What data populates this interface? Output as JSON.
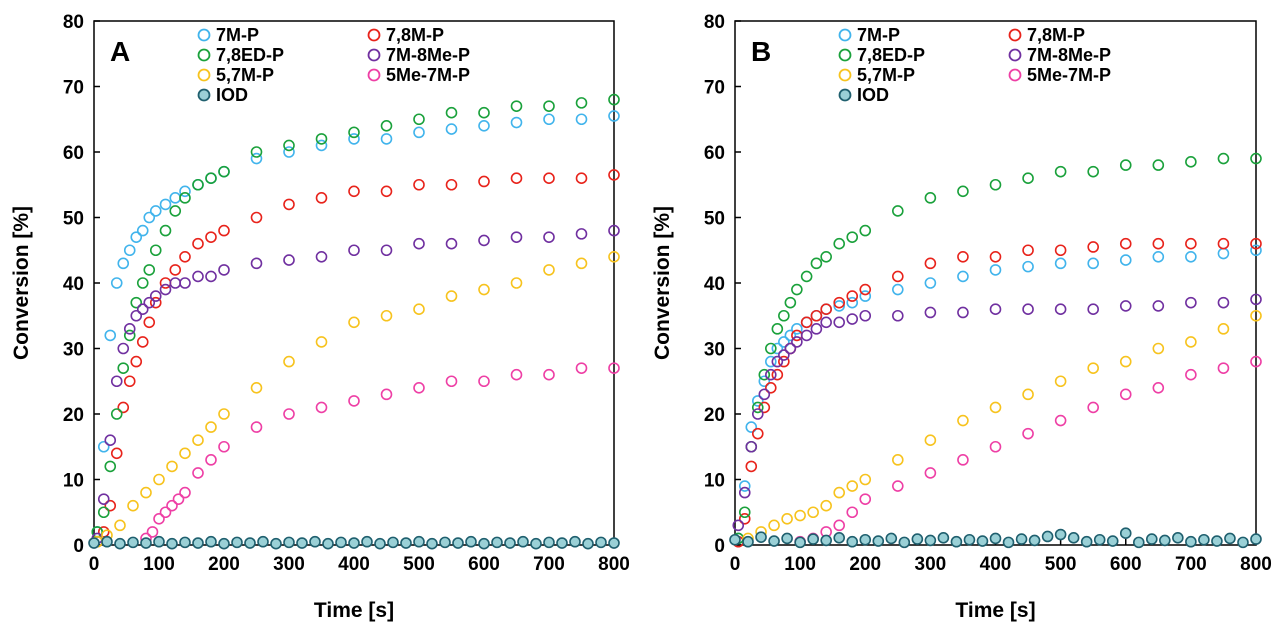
{
  "chart_data": [
    {
      "type": "scatter",
      "panel_label": "A",
      "xlabel": "Time [s]",
      "ylabel": "Conversion [%]",
      "xlim": [
        0,
        800
      ],
      "ylim": [
        0,
        80
      ],
      "xticks": [
        0,
        100,
        200,
        300,
        400,
        500,
        600,
        700,
        800
      ],
      "yticks": [
        0,
        10,
        20,
        30,
        40,
        50,
        60,
        70,
        80
      ],
      "grid": false,
      "legend_position": "top",
      "series": [
        {
          "name": "7M-P",
          "color": "#41b4ec",
          "fill": "none",
          "x": [
            5,
            15,
            25,
            35,
            45,
            55,
            65,
            75,
            85,
            95,
            110,
            125,
            140,
            160,
            180,
            200,
            250,
            300,
            350,
            400,
            450,
            500,
            550,
            600,
            650,
            700,
            750,
            800
          ],
          "y": [
            2,
            15,
            32,
            40,
            43,
            45,
            47,
            48,
            50,
            51,
            52,
            53,
            54,
            55,
            56,
            57,
            59,
            60,
            61,
            62,
            62,
            63,
            63.5,
            64,
            64.5,
            65,
            65,
            65.5
          ]
        },
        {
          "name": "7,8M-P",
          "color": "#e8231b",
          "fill": "none",
          "x": [
            5,
            15,
            25,
            35,
            45,
            55,
            65,
            75,
            85,
            95,
            110,
            125,
            140,
            160,
            180,
            200,
            250,
            300,
            350,
            400,
            450,
            500,
            550,
            600,
            650,
            700,
            750,
            800
          ],
          "y": [
            0.5,
            2,
            6,
            14,
            21,
            25,
            28,
            31,
            34,
            37,
            40,
            42,
            44,
            46,
            47,
            48,
            50,
            52,
            53,
            54,
            54,
            55,
            55,
            55.5,
            56,
            56,
            56,
            56.5
          ]
        },
        {
          "name": "7,8ED-P",
          "color": "#1aa13b",
          "fill": "none",
          "x": [
            5,
            15,
            25,
            35,
            45,
            55,
            65,
            75,
            85,
            95,
            110,
            125,
            140,
            160,
            180,
            200,
            250,
            300,
            350,
            400,
            450,
            500,
            550,
            600,
            650,
            700,
            750,
            800
          ],
          "y": [
            2,
            5,
            12,
            20,
            27,
            32,
            37,
            40,
            42,
            45,
            48,
            51,
            53,
            55,
            56,
            57,
            60,
            61,
            62,
            63,
            64,
            65,
            66,
            66,
            67,
            67,
            67.5,
            68
          ]
        },
        {
          "name": "7M-8Me-P",
          "color": "#7030a0",
          "fill": "none",
          "x": [
            5,
            15,
            25,
            35,
            45,
            55,
            65,
            75,
            85,
            95,
            110,
            125,
            140,
            160,
            180,
            200,
            250,
            300,
            350,
            400,
            450,
            500,
            550,
            600,
            650,
            700,
            750,
            800
          ],
          "y": [
            1,
            7,
            16,
            25,
            30,
            33,
            35,
            36,
            37,
            38,
            39,
            40,
            40,
            41,
            41,
            42,
            43,
            43.5,
            44,
            45,
            45,
            46,
            46,
            46.5,
            47,
            47,
            47.5,
            48
          ]
        },
        {
          "name": "5,7M-P",
          "color": "#f7c31e",
          "fill": "none",
          "x": [
            5,
            20,
            40,
            60,
            80,
            100,
            120,
            140,
            160,
            180,
            200,
            250,
            300,
            350,
            400,
            450,
            500,
            550,
            600,
            650,
            700,
            750,
            800
          ],
          "y": [
            0.5,
            1.5,
            3,
            6,
            8,
            10,
            12,
            14,
            16,
            18,
            20,
            24,
            28,
            31,
            34,
            35,
            36,
            38,
            39,
            40,
            42,
            43,
            44
          ]
        },
        {
          "name": "5Me-7M-P",
          "color": "#ee3fa5",
          "fill": "none",
          "x": [
            80,
            90,
            100,
            110,
            120,
            130,
            140,
            160,
            180,
            200,
            250,
            300,
            350,
            400,
            450,
            500,
            550,
            600,
            650,
            700,
            750,
            800
          ],
          "y": [
            1,
            2,
            4,
            5,
            6,
            7,
            8,
            11,
            13,
            15,
            18,
            20,
            21,
            22,
            23,
            24,
            25,
            25,
            26,
            26,
            27,
            27
          ]
        },
        {
          "name": "IOD",
          "color": "#1f5f6e",
          "fill": "#9ad0d6",
          "x": [
            0,
            20,
            40,
            60,
            80,
            100,
            120,
            140,
            160,
            180,
            200,
            220,
            240,
            260,
            280,
            300,
            320,
            340,
            360,
            380,
            400,
            420,
            440,
            460,
            480,
            500,
            520,
            540,
            560,
            580,
            600,
            620,
            640,
            660,
            680,
            700,
            720,
            740,
            760,
            780,
            800
          ],
          "y": [
            0.3,
            0.5,
            0.2,
            0.4,
            0.3,
            0.5,
            0.2,
            0.4,
            0.3,
            0.5,
            0.2,
            0.4,
            0.3,
            0.5,
            0.2,
            0.4,
            0.3,
            0.5,
            0.2,
            0.4,
            0.3,
            0.5,
            0.2,
            0.4,
            0.3,
            0.5,
            0.2,
            0.4,
            0.3,
            0.5,
            0.2,
            0.4,
            0.3,
            0.5,
            0.2,
            0.4,
            0.3,
            0.5,
            0.2,
            0.4,
            0.3
          ]
        }
      ]
    },
    {
      "type": "scatter",
      "panel_label": "B",
      "xlabel": "Time [s]",
      "ylabel": "Conversion [%]",
      "xlim": [
        0,
        800
      ],
      "ylim": [
        0,
        80
      ],
      "xticks": [
        0,
        100,
        200,
        300,
        400,
        500,
        600,
        700,
        800
      ],
      "yticks": [
        0,
        10,
        20,
        30,
        40,
        50,
        60,
        70,
        80
      ],
      "grid": false,
      "legend_position": "top",
      "series": [
        {
          "name": "7M-P",
          "color": "#41b4ec",
          "fill": "none",
          "x": [
            5,
            15,
            25,
            35,
            45,
            55,
            65,
            75,
            85,
            95,
            110,
            125,
            140,
            160,
            180,
            200,
            250,
            300,
            350,
            400,
            450,
            500,
            550,
            600,
            650,
            700,
            750,
            800
          ],
          "y": [
            1,
            9,
            18,
            22,
            25,
            28,
            30,
            31,
            32,
            33,
            34,
            35,
            36,
            36.5,
            37,
            38,
            39,
            40,
            41,
            42,
            42.5,
            43,
            43,
            43.5,
            44,
            44,
            44.5,
            45
          ]
        },
        {
          "name": "7,8M-P",
          "color": "#e8231b",
          "fill": "none",
          "x": [
            5,
            15,
            25,
            35,
            45,
            55,
            65,
            75,
            85,
            95,
            110,
            125,
            140,
            160,
            180,
            200,
            250,
            300,
            350,
            400,
            450,
            500,
            550,
            600,
            650,
            700,
            750,
            800
          ],
          "y": [
            0.5,
            4,
            12,
            17,
            21,
            24,
            26,
            28,
            30,
            32,
            34,
            35,
            36,
            37,
            38,
            39,
            41,
            43,
            44,
            44,
            45,
            45,
            45.5,
            46,
            46,
            46,
            46,
            46
          ]
        },
        {
          "name": "7,8ED-P",
          "color": "#1aa13b",
          "fill": "none",
          "x": [
            5,
            15,
            25,
            35,
            45,
            55,
            65,
            75,
            85,
            95,
            110,
            125,
            140,
            160,
            180,
            200,
            250,
            300,
            350,
            400,
            450,
            500,
            550,
            600,
            650,
            700,
            750,
            800
          ],
          "y": [
            1,
            5,
            15,
            21,
            26,
            30,
            33,
            35,
            37,
            39,
            41,
            43,
            44,
            46,
            47,
            48,
            51,
            53,
            54,
            55,
            56,
            57,
            57,
            58,
            58,
            58.5,
            59,
            59
          ]
        },
        {
          "name": "7M-8Me-P",
          "color": "#7030a0",
          "fill": "none",
          "x": [
            5,
            15,
            25,
            35,
            45,
            55,
            65,
            75,
            85,
            95,
            110,
            125,
            140,
            160,
            180,
            200,
            250,
            300,
            350,
            400,
            450,
            500,
            550,
            600,
            650,
            700,
            750,
            800
          ],
          "y": [
            3,
            8,
            15,
            20,
            23,
            26,
            28,
            29,
            30,
            31,
            32,
            33,
            34,
            34,
            34.5,
            35,
            35,
            35.5,
            35.5,
            36,
            36,
            36,
            36,
            36.5,
            36.5,
            37,
            37,
            37.5
          ]
        },
        {
          "name": "5,7M-P",
          "color": "#f7c31e",
          "fill": "none",
          "x": [
            20,
            40,
            60,
            80,
            100,
            120,
            140,
            160,
            180,
            200,
            250,
            300,
            350,
            400,
            450,
            500,
            550,
            600,
            650,
            700,
            750,
            800
          ],
          "y": [
            1,
            2,
            3,
            4,
            4.5,
            5,
            6,
            8,
            9,
            10,
            13,
            16,
            19,
            21,
            23,
            25,
            27,
            28,
            30,
            31,
            33,
            35
          ]
        },
        {
          "name": "5Me-7M-P",
          "color": "#ee3fa5",
          "fill": "none",
          "x": [
            100,
            120,
            140,
            160,
            180,
            200,
            250,
            300,
            350,
            400,
            450,
            500,
            550,
            600,
            650,
            700,
            750,
            800
          ],
          "y": [
            0.5,
            1,
            2,
            3,
            5,
            7,
            9,
            11,
            13,
            15,
            17,
            19,
            21,
            23,
            24,
            26,
            27,
            28
          ]
        },
        {
          "name": "IOD",
          "color": "#1f5f6e",
          "fill": "#9ad0d6",
          "x": [
            0,
            20,
            40,
            60,
            80,
            100,
            120,
            140,
            160,
            180,
            200,
            220,
            240,
            260,
            280,
            300,
            320,
            340,
            360,
            380,
            400,
            420,
            440,
            460,
            480,
            500,
            520,
            540,
            560,
            580,
            600,
            620,
            640,
            660,
            680,
            700,
            720,
            740,
            760,
            780,
            800
          ],
          "y": [
            0.8,
            0.5,
            1.2,
            0.6,
            1.0,
            0.4,
            0.9,
            0.7,
            1.1,
            0.5,
            0.8,
            0.6,
            1.0,
            0.4,
            0.9,
            0.7,
            1.1,
            0.5,
            0.8,
            0.6,
            1.0,
            0.4,
            0.9,
            0.7,
            1.3,
            1.6,
            1.1,
            0.5,
            0.8,
            0.6,
            1.8,
            0.4,
            0.9,
            0.7,
            1.1,
            0.5,
            0.8,
            0.6,
            1.0,
            0.4,
            0.9
          ]
        }
      ]
    }
  ]
}
